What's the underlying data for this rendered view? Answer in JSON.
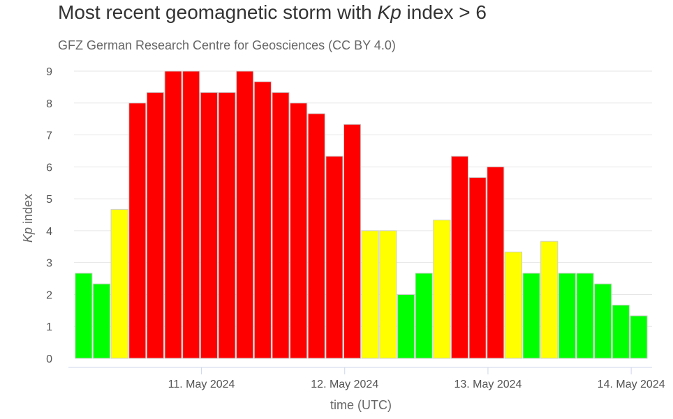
{
  "chart_data": {
    "type": "bar",
    "title_prefix": "Most recent geomagnetic storm with ",
    "title_var": "Kp",
    "title_suffix": " index > 6",
    "subtitle": "GFZ German Research Centre for Geosciences (CC BY 4.0)",
    "xlabel": "time (UTC)",
    "ylabel_var": "Kp",
    "ylabel_suffix": " index",
    "ylim": [
      0,
      9
    ],
    "yticks": [
      0,
      1,
      2,
      3,
      4,
      5,
      6,
      7,
      8,
      9
    ],
    "grid": true,
    "x_start": "10. May 2024 03:00",
    "x_interval_hours": 3,
    "xticks": [
      {
        "label": "11. May 2024",
        "bar_index": 7
      },
      {
        "label": "12. May 2024",
        "bar_index": 15
      },
      {
        "label": "13. May 2024",
        "bar_index": 23
      },
      {
        "label": "14. May 2024",
        "bar_index": 31
      }
    ],
    "values": [
      2.667,
      2.333,
      4.667,
      8.0,
      8.333,
      9.0,
      9.0,
      8.333,
      8.333,
      9.0,
      8.667,
      8.333,
      8.0,
      7.667,
      6.333,
      7.333,
      4.0,
      4.0,
      2.0,
      2.667,
      4.333,
      6.333,
      5.667,
      6.0,
      3.333,
      2.667,
      3.667,
      2.667,
      2.667,
      2.333,
      1.667,
      1.333
    ],
    "colors": {
      "quiet": "#00ff00",
      "active": "#ffff00",
      "storm": "#ff0000"
    }
  }
}
